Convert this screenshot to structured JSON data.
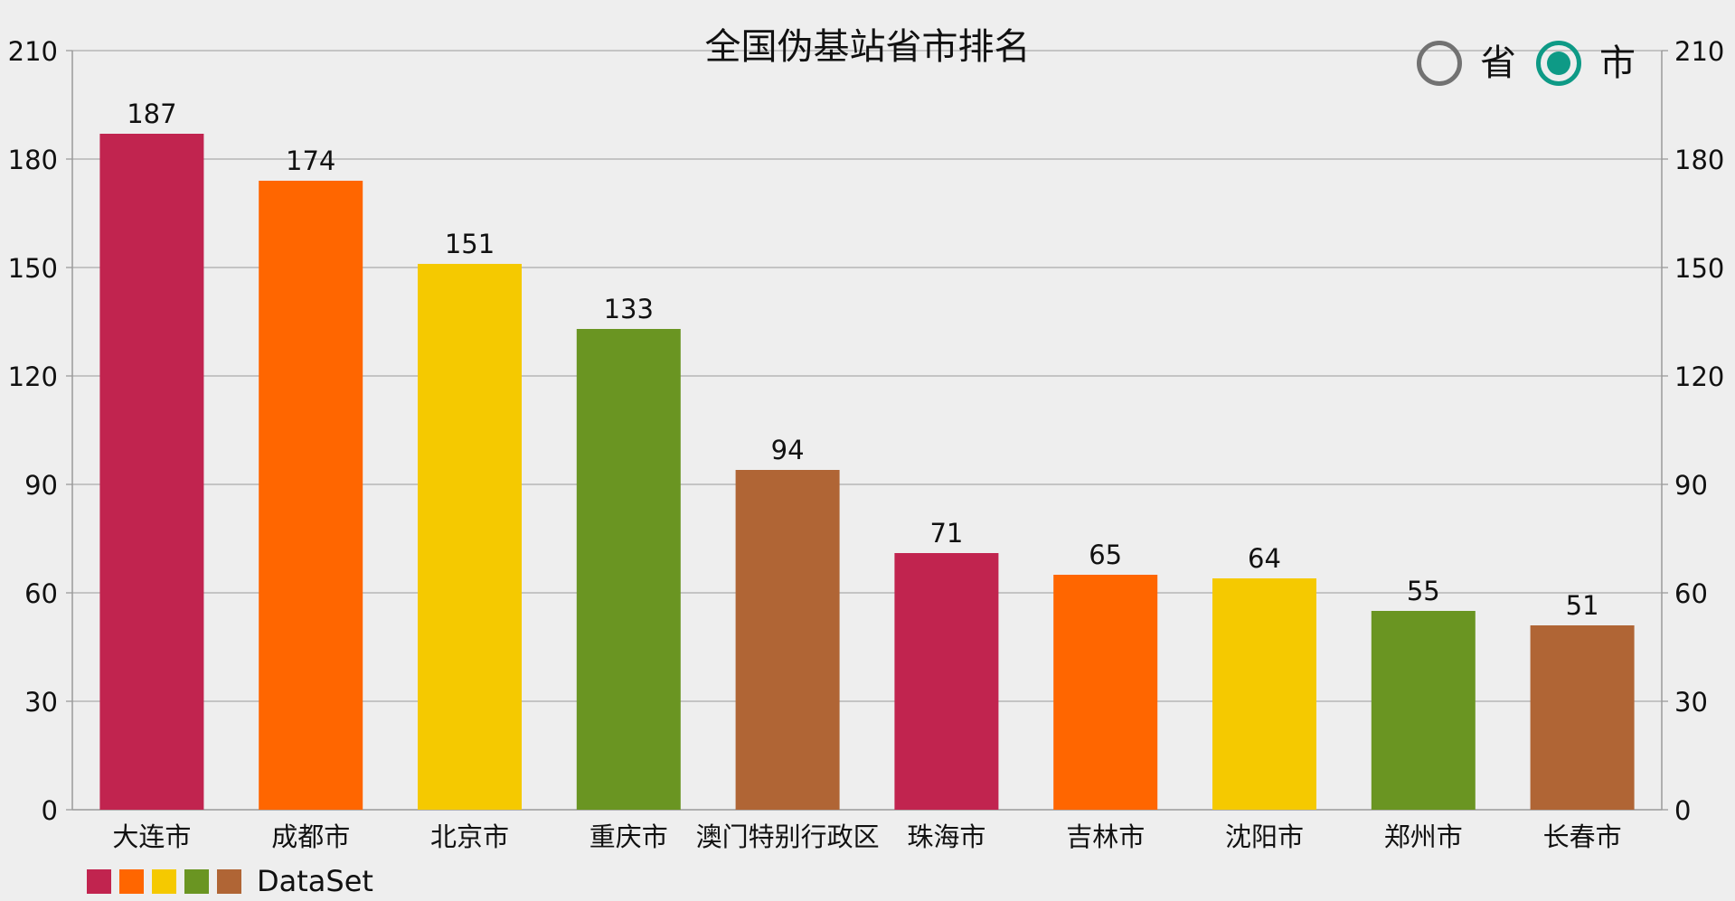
{
  "chart_data": {
    "type": "bar",
    "title": "全国伪基站省市排名",
    "categories": [
      "大连市",
      "成都市",
      "北京市",
      "重庆市",
      "澳门特别行政区",
      "珠海市",
      "吉林市",
      "沈阳市",
      "郑州市",
      "长春市"
    ],
    "series": [
      {
        "name": "DataSet",
        "values": [
          187,
          174,
          151,
          133,
          94,
          71,
          65,
          64,
          55,
          51
        ]
      }
    ],
    "bar_colors": [
      "#c1244f",
      "#ff6600",
      "#f5c900",
      "#6a9522",
      "#b06535",
      "#c1244f",
      "#ff6600",
      "#f5c900",
      "#6a9522",
      "#b06535"
    ],
    "xlabel": "",
    "ylabel": "",
    "ylim": [
      0,
      210
    ],
    "yticks": [
      0,
      30,
      60,
      90,
      120,
      150,
      180,
      210
    ],
    "secondary_y_axis": true,
    "grid": true,
    "data_labels": true,
    "legend": {
      "position": "bottom-left",
      "label": "DataSet",
      "swatch_colors": [
        "#c1244f",
        "#ff6600",
        "#f5c900",
        "#6a9522",
        "#b06535"
      ]
    }
  },
  "toggle": {
    "options": [
      {
        "label": "省",
        "selected": false
      },
      {
        "label": "市",
        "selected": true
      }
    ],
    "accent_color": "#0e9a86",
    "inactive_color": "#727272"
  }
}
